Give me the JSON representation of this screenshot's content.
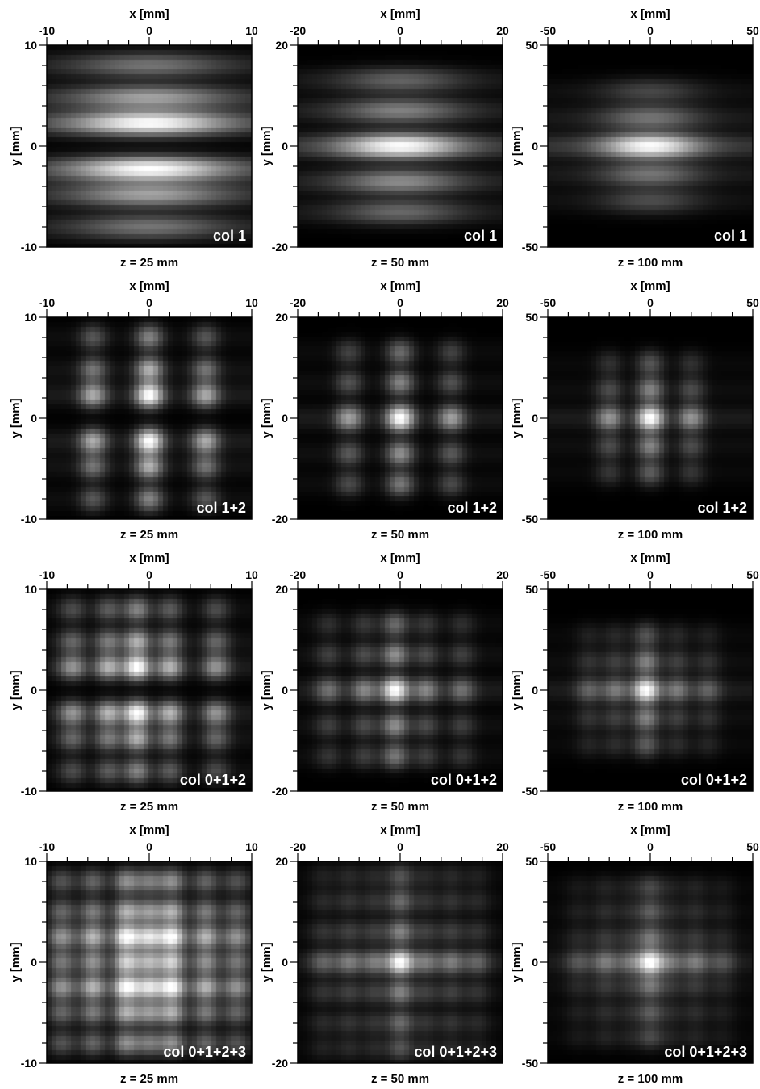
{
  "chart_data": {
    "type": "heatmap",
    "panels": [
      {
        "row": 1,
        "col": 1,
        "label": "col 1",
        "z_label": "z = 25 mm",
        "xlabel": "x [mm]",
        "ylabel": "y [mm]",
        "xlim": [
          -10,
          10
        ],
        "ylim": [
          -10,
          10
        ],
        "xticks": [
          "-10",
          "0",
          "10"
        ],
        "yticks": [
          "10",
          "0",
          "-10"
        ],
        "y_peaks": [
          [
            2.3,
            1.0
          ],
          [
            -2.3,
            1.0
          ],
          [
            4.8,
            0.55
          ],
          [
            -4.8,
            0.55
          ],
          [
            8.0,
            0.35
          ],
          [
            -8.0,
            0.35
          ]
        ],
        "x_peaks": [],
        "x_envelope": 7.0
      },
      {
        "row": 1,
        "col": 2,
        "label": "col 1",
        "z_label": "z = 50 mm",
        "xlabel": "x [mm]",
        "ylabel": "y [mm]",
        "xlim": [
          -20,
          20
        ],
        "ylim": [
          -20,
          20
        ],
        "xticks": [
          "-20",
          "0",
          "20"
        ],
        "yticks": [
          "20",
          "0",
          "-20"
        ],
        "y_peaks": [
          [
            0,
            1.0
          ],
          [
            -7,
            0.45
          ],
          [
            7,
            0.4
          ],
          [
            -13,
            0.3
          ],
          [
            13,
            0.28
          ]
        ],
        "x_peaks": [],
        "x_envelope": 11.0
      },
      {
        "row": 1,
        "col": 3,
        "label": "col 1",
        "z_label": "z = 100 mm",
        "xlabel": "x [mm]",
        "ylabel": "y [mm]",
        "xlim": [
          -50,
          50
        ],
        "ylim": [
          -50,
          50
        ],
        "xticks": [
          "-50",
          "0",
          "50"
        ],
        "yticks": [
          "50",
          "0",
          "-50"
        ],
        "y_peaks": [
          [
            0,
            1.0
          ],
          [
            -14,
            0.35
          ],
          [
            14,
            0.35
          ],
          [
            -27,
            0.2
          ],
          [
            27,
            0.18
          ]
        ],
        "x_peaks": [],
        "x_envelope": 22.0
      },
      {
        "row": 2,
        "col": 1,
        "label": "col 1+2",
        "z_label": "z = 25 mm",
        "xlabel": "x [mm]",
        "ylabel": "y [mm]",
        "xlim": [
          -10,
          10
        ],
        "ylim": [
          -10,
          10
        ],
        "xticks": [
          "-10",
          "0",
          "10"
        ],
        "yticks": [
          "10",
          "0",
          "-10"
        ],
        "y_peaks": [
          [
            2.3,
            1.0
          ],
          [
            -2.3,
            1.0
          ],
          [
            4.8,
            0.6
          ],
          [
            -4.8,
            0.6
          ],
          [
            8.0,
            0.4
          ],
          [
            -8.0,
            0.4
          ]
        ],
        "x_peaks": [
          [
            0,
            1.0
          ],
          [
            -5.5,
            0.55
          ],
          [
            5.5,
            0.55
          ]
        ],
        "x_envelope": 0
      },
      {
        "row": 2,
        "col": 2,
        "label": "col 1+2",
        "z_label": "z = 50 mm",
        "xlabel": "x [mm]",
        "ylabel": "y [mm]",
        "xlim": [
          -20,
          20
        ],
        "ylim": [
          -20,
          20
        ],
        "xticks": [
          "-20",
          "0",
          "20"
        ],
        "yticks": [
          "20",
          "0",
          "-20"
        ],
        "y_peaks": [
          [
            0,
            1.0
          ],
          [
            -7,
            0.45
          ],
          [
            7,
            0.4
          ],
          [
            -13,
            0.35
          ],
          [
            13,
            0.3
          ]
        ],
        "x_peaks": [
          [
            0,
            1.0
          ],
          [
            -10,
            0.5
          ],
          [
            10,
            0.5
          ]
        ],
        "x_envelope": 0
      },
      {
        "row": 2,
        "col": 3,
        "label": "col 1+2",
        "z_label": "z = 100 mm",
        "xlabel": "x [mm]",
        "ylabel": "y [mm]",
        "xlim": [
          -50,
          50
        ],
        "ylim": [
          -50,
          50
        ],
        "xticks": [
          "-50",
          "0",
          "50"
        ],
        "yticks": [
          "50",
          "0",
          "-50"
        ],
        "y_peaks": [
          [
            0,
            1.0
          ],
          [
            -14,
            0.4
          ],
          [
            14,
            0.4
          ],
          [
            -27,
            0.25
          ],
          [
            27,
            0.22
          ]
        ],
        "x_peaks": [
          [
            0,
            1.0
          ],
          [
            -20,
            0.45
          ],
          [
            20,
            0.45
          ]
        ],
        "x_envelope": 0
      },
      {
        "row": 3,
        "col": 1,
        "label": "col 0+1+2",
        "z_label": "z = 25 mm",
        "xlabel": "x [mm]",
        "ylabel": "y [mm]",
        "xlim": [
          -10,
          10
        ],
        "ylim": [
          -10,
          10
        ],
        "xticks": [
          "-10",
          "0",
          "10"
        ],
        "yticks": [
          "10",
          "0",
          "-10"
        ],
        "y_peaks": [
          [
            2.3,
            1.0
          ],
          [
            -2.3,
            1.0
          ],
          [
            4.8,
            0.6
          ],
          [
            -4.8,
            0.6
          ],
          [
            8.0,
            0.4
          ],
          [
            -8.0,
            0.4
          ]
        ],
        "x_peaks": [
          [
            -1.2,
            1.0
          ],
          [
            -4.0,
            0.6
          ],
          [
            2.0,
            0.6
          ],
          [
            -7.5,
            0.45
          ],
          [
            6.5,
            0.45
          ]
        ],
        "x_envelope": 0
      },
      {
        "row": 3,
        "col": 2,
        "label": "col 0+1+2",
        "z_label": "z = 50 mm",
        "xlabel": "x [mm]",
        "ylabel": "y [mm]",
        "xlim": [
          -20,
          20
        ],
        "ylim": [
          -20,
          20
        ],
        "xticks": [
          "-20",
          "0",
          "20"
        ],
        "yticks": [
          "20",
          "0",
          "-20"
        ],
        "y_peaks": [
          [
            0,
            1.0
          ],
          [
            -7,
            0.45
          ],
          [
            7,
            0.45
          ],
          [
            -13,
            0.35
          ],
          [
            13,
            0.3
          ]
        ],
        "x_peaks": [
          [
            -1,
            1.0
          ],
          [
            -7,
            0.4
          ],
          [
            5,
            0.4
          ],
          [
            -14,
            0.3
          ],
          [
            12,
            0.3
          ]
        ],
        "x_envelope": 0
      },
      {
        "row": 3,
        "col": 3,
        "label": "col 0+1+2",
        "z_label": "z = 100 mm",
        "xlabel": "x [mm]",
        "ylabel": "y [mm]",
        "xlim": [
          -50,
          50
        ],
        "ylim": [
          -50,
          50
        ],
        "xticks": [
          "-50",
          "0",
          "50"
        ],
        "yticks": [
          "50",
          "0",
          "-50"
        ],
        "y_peaks": [
          [
            0,
            1.0
          ],
          [
            -14,
            0.4
          ],
          [
            14,
            0.4
          ],
          [
            -27,
            0.25
          ],
          [
            27,
            0.22
          ]
        ],
        "x_peaks": [
          [
            -2,
            1.0
          ],
          [
            -17,
            0.35
          ],
          [
            13,
            0.35
          ],
          [
            -30,
            0.25
          ],
          [
            28,
            0.25
          ]
        ],
        "x_envelope": 0
      },
      {
        "row": 4,
        "col": 1,
        "label": "col 0+1+2+3",
        "z_label": "z = 25 mm",
        "xlabel": "x [mm]",
        "ylabel": "y [mm]",
        "xlim": [
          -10,
          10
        ],
        "ylim": [
          -10,
          10
        ],
        "xticks": [
          "-10",
          "0",
          "10"
        ],
        "yticks": [
          "10",
          "0",
          "-10"
        ],
        "y_peaks": [
          [
            2.5,
            1.0
          ],
          [
            -2.5,
            1.0
          ],
          [
            0,
            0.75
          ],
          [
            5.0,
            0.6
          ],
          [
            -5.0,
            0.6
          ],
          [
            8.0,
            0.45
          ],
          [
            -8.0,
            0.45
          ]
        ],
        "x_peaks": [
          [
            -2.2,
            1.0
          ],
          [
            2.2,
            1.0
          ],
          [
            0,
            0.8
          ],
          [
            -5.5,
            0.6
          ],
          [
            5.5,
            0.6
          ],
          [
            -8.5,
            0.45
          ],
          [
            8.5,
            0.45
          ]
        ],
        "x_envelope": 0
      },
      {
        "row": 4,
        "col": 2,
        "label": "col 0+1+2+3",
        "z_label": "z = 50 mm",
        "xlabel": "x [mm]",
        "ylabel": "y [mm]",
        "xlim": [
          -20,
          20
        ],
        "ylim": [
          -20,
          20
        ],
        "xticks": [
          "-20",
          "0",
          "20"
        ],
        "yticks": [
          "20",
          "0",
          "-20"
        ],
        "y_peaks": [
          [
            0,
            1.0
          ],
          [
            -6,
            0.4
          ],
          [
            6,
            0.4
          ],
          [
            -12,
            0.3
          ],
          [
            12,
            0.3
          ],
          [
            -17,
            0.22
          ],
          [
            17,
            0.22
          ]
        ],
        "x_peaks": [
          [
            0,
            1.0
          ],
          [
            -5,
            0.35
          ],
          [
            5,
            0.35
          ],
          [
            -10,
            0.35
          ],
          [
            10,
            0.35
          ],
          [
            -15,
            0.25
          ],
          [
            15,
            0.25
          ]
        ],
        "x_envelope": 0
      },
      {
        "row": 4,
        "col": 3,
        "label": "col 0+1+2+3",
        "z_label": "z = 100 mm",
        "xlabel": "x [mm]",
        "ylabel": "y [mm]",
        "xlim": [
          -50,
          50
        ],
        "ylim": [
          -50,
          50
        ],
        "xticks": [
          "-50",
          "0",
          "50"
        ],
        "yticks": [
          "50",
          "0",
          "-50"
        ],
        "y_peaks": [
          [
            0,
            1.0
          ],
          [
            -12,
            0.35
          ],
          [
            12,
            0.35
          ],
          [
            -25,
            0.25
          ],
          [
            25,
            0.25
          ],
          [
            -37,
            0.18
          ],
          [
            37,
            0.18
          ]
        ],
        "x_peaks": [
          [
            0,
            1.0
          ],
          [
            -10,
            0.3
          ],
          [
            10,
            0.3
          ],
          [
            -22,
            0.35
          ],
          [
            22,
            0.35
          ],
          [
            -35,
            0.2
          ],
          [
            35,
            0.2
          ]
        ],
        "x_envelope": 0
      }
    ]
  }
}
